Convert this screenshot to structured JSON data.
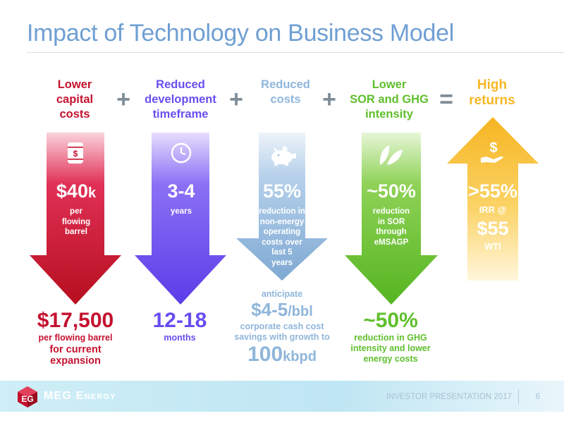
{
  "title": "Impact of Technology on Business Model",
  "operators": [
    "+",
    "+",
    "+",
    "="
  ],
  "columns": [
    {
      "header": [
        "Lower",
        "capital",
        "costs"
      ],
      "icon": "oil-barrel-dollar-icon",
      "stat": "$40",
      "stat_suffix": "k",
      "desc": [
        "per",
        "flowing",
        "barrel"
      ],
      "bottom_big": "$17,500",
      "bottom_sub": [
        "per flowing barrel"
      ],
      "bottom_sub2": [
        "for current",
        "expansion"
      ],
      "color": "#c4122f"
    },
    {
      "header": [
        "Reduced",
        "development",
        "timeframe"
      ],
      "icon": "clock-icon",
      "stat": "3-4",
      "desc": [
        "years"
      ],
      "bottom_big": "12-18",
      "bottom_sub": [
        "months"
      ],
      "color": "#6a4df0"
    },
    {
      "header": [
        "Reduced",
        "costs"
      ],
      "icon": "piggy-bank-icon",
      "stat": "55%",
      "desc": [
        "reduction in",
        "non-energy",
        "operating",
        "costs over",
        "last 5",
        "years"
      ],
      "bottom_pre": "anticipate",
      "bottom_big": "$4-5",
      "bottom_big_suffix": "/bbl",
      "bottom_sub": [
        "corporate cash cost",
        "savings with growth to"
      ],
      "bottom_big2": "100",
      "bottom_big2_suffix": "kbpd",
      "color": "#8fb6db"
    },
    {
      "header": [
        "Lower",
        "SOR and GHG",
        "intensity"
      ],
      "icon": "leaf-icon",
      "stat": "~50%",
      "desc": [
        "reduction",
        "in SOR",
        "through",
        "eMSAGP"
      ],
      "bottom_big": "~50%",
      "bottom_sub": [
        "reduction in GHG",
        "intensity and lower",
        "energy costs"
      ],
      "color": "#5fbf2c"
    },
    {
      "header": [
        "High",
        "returns"
      ],
      "icon": "hand-dollar-icon",
      "stat": ">55%",
      "desc": [
        "IRR @"
      ],
      "stat2": "$55",
      "desc2": [
        "WTI"
      ],
      "color": "#f6b727"
    }
  ],
  "footer": {
    "logo_text": "MEG Energy",
    "presentation_label": "INVESTOR PRESENTATION 2017",
    "page_number": "6"
  }
}
